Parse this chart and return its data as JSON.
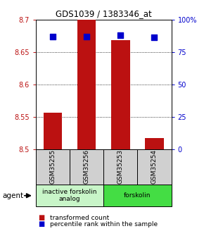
{
  "title": "GDS1039 / 1383346_at",
  "samples": [
    "GSM35255",
    "GSM35256",
    "GSM35253",
    "GSM35254"
  ],
  "red_values": [
    8.557,
    8.7,
    8.668,
    8.517
  ],
  "blue_pct": [
    87,
    87,
    88,
    86
  ],
  "ylim_left": [
    8.5,
    8.7
  ],
  "ylim_right": [
    0,
    100
  ],
  "yticks_left": [
    8.5,
    8.55,
    8.6,
    8.65,
    8.7
  ],
  "ytick_labels_left": [
    "8.5",
    "8.55",
    "8.6",
    "8.65",
    "8.7"
  ],
  "ytick_labels_right": [
    "0",
    "25",
    "50",
    "75",
    "100%"
  ],
  "yticks_right": [
    0,
    25,
    50,
    75,
    100
  ],
  "bar_color": "#bb1111",
  "dot_color": "#0000cc",
  "bar_width": 0.55,
  "dot_size": 28,
  "background_color": "#ffffff",
  "legend_red": "transformed count",
  "legend_blue": "percentile rank within the sample",
  "group1_label": "inactive forskolin\nanalog",
  "group2_label": "forskolin",
  "group1_color": "#c8f5c8",
  "group2_color": "#44dd44"
}
